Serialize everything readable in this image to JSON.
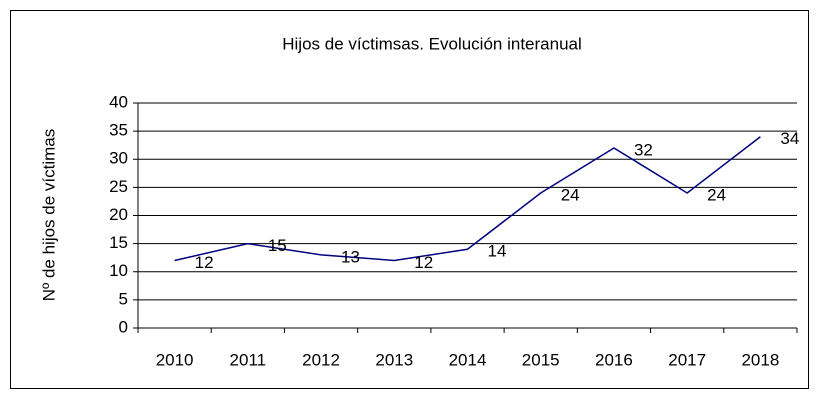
{
  "chart_data": {
    "type": "line",
    "title": "Hijos de víctimsas. Evolución interanual",
    "y_label": "Nº de hijos de víctimas",
    "categories": [
      "2010",
      "2011",
      "2012",
      "2013",
      "2014",
      "2015",
      "2016",
      "2017",
      "2018"
    ],
    "values": [
      12,
      15,
      13,
      12,
      14,
      24,
      32,
      24,
      34
    ],
    "color": "#000080",
    "ylim": [
      0,
      40
    ],
    "yticks": [
      0,
      5,
      10,
      15,
      20,
      25,
      30,
      35,
      40
    ],
    "grid": true
  }
}
